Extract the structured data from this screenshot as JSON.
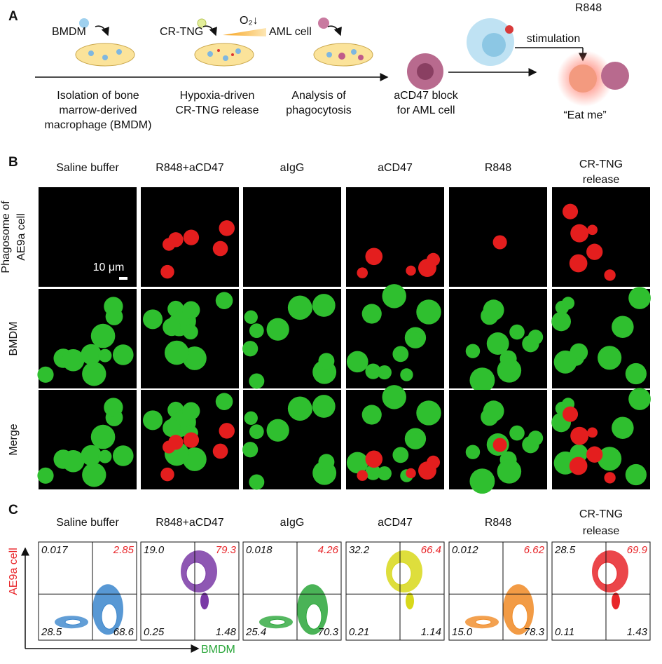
{
  "panel_a": {
    "label": "A",
    "icons": [
      "BMDM",
      "CR-TNG",
      "AML cell"
    ],
    "oxygen": "O₂↓",
    "stimulation": [
      "R848",
      "stimulation"
    ],
    "captions": [
      [
        "Isolation of bone",
        "marrow-derived",
        "macrophage (BMDM)"
      ],
      [
        "Hypoxia-driven",
        "CR-TNG release"
      ],
      [
        "Analysis of",
        "phagocytosis"
      ],
      [
        "aCD47 block",
        "for AML cell"
      ]
    ],
    "eat_me": "“Eat me”"
  },
  "panel_b": {
    "label": "B",
    "columns": [
      [
        "Saline buffer"
      ],
      [
        "R848+aCD47"
      ],
      [
        "aIgG"
      ],
      [
        "aCD47"
      ],
      [
        "R848"
      ],
      [
        "CR-TNG",
        "release"
      ]
    ],
    "rows": [
      [
        "Phagosome of",
        "AE9a cell"
      ],
      [
        "BMDM"
      ],
      [
        "Merge"
      ]
    ],
    "scale_bar": "10 μm"
  },
  "panel_c": {
    "label": "C",
    "columns": [
      [
        "Saline buffer"
      ],
      [
        "R848+aCD47"
      ],
      [
        "aIgG"
      ],
      [
        "aCD47"
      ],
      [
        "R848"
      ],
      [
        "CR-TNG",
        "release"
      ]
    ],
    "y_axis": "AE9a cell",
    "x_axis": "BMDM",
    "quadrants": [
      {
        "ul": "0.017",
        "ur": "2.85",
        "ll": "28.5",
        "lr": "68.6"
      },
      {
        "ul": "19.0",
        "ur": "79.3",
        "ll": "0.25",
        "lr": "1.48"
      },
      {
        "ul": "0.018",
        "ur": "4.26",
        "ll": "25.4",
        "lr": "70.3"
      },
      {
        "ul": "32.2",
        "ur": "66.4",
        "ll": "0.21",
        "lr": "1.14"
      },
      {
        "ul": "0.012",
        "ur": "6.62",
        "ll": "15.0",
        "lr": "78.3"
      },
      {
        "ul": "28.5",
        "ur": "69.9",
        "ll": "0.11",
        "lr": "1.43"
      }
    ]
  }
}
